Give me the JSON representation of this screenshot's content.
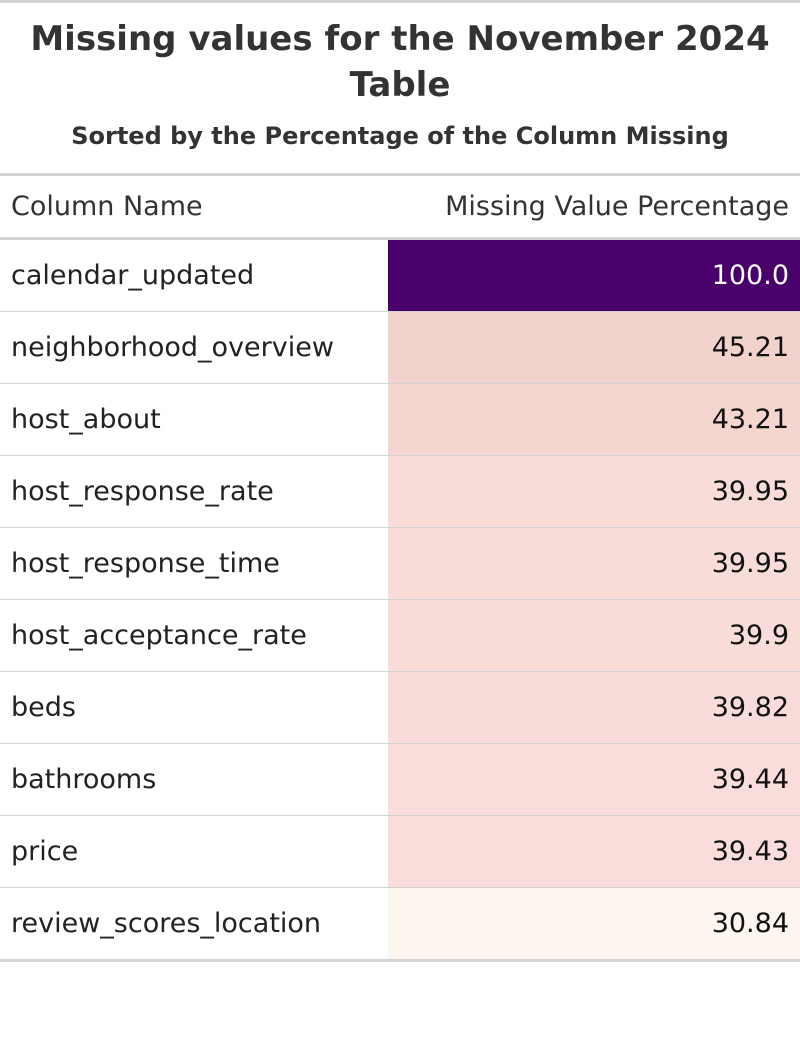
{
  "chart_data": {
    "type": "table",
    "title": "Missing values for the November 2024 Table",
    "subtitle": "Sorted by the Percentage of the Column Missing",
    "columns": [
      "Column Name",
      "Missing Value Percentage"
    ],
    "rows": [
      {
        "name": "calendar_updated",
        "value": "100.0",
        "color": "#4a006b",
        "text_color": "#ffffff"
      },
      {
        "name": "neighborhood_overview",
        "value": "45.21",
        "color": "#f2d2cc",
        "text_color": "#111111"
      },
      {
        "name": "host_about",
        "value": "43.21",
        "color": "#f4d5d0",
        "text_color": "#111111"
      },
      {
        "name": "host_response_rate",
        "value": "39.95",
        "color": "#f8dcd8",
        "text_color": "#111111"
      },
      {
        "name": "host_response_time",
        "value": "39.95",
        "color": "#f8dcd8",
        "text_color": "#111111"
      },
      {
        "name": "host_acceptance_rate",
        "value": "39.9",
        "color": "#f8dcd8",
        "text_color": "#111111"
      },
      {
        "name": "beds",
        "value": "39.82",
        "color": "#f8dcd9",
        "text_color": "#111111"
      },
      {
        "name": "bathrooms",
        "value": "39.44",
        "color": "#f8dddb",
        "text_color": "#111111"
      },
      {
        "name": "price",
        "value": "39.43",
        "color": "#f8dddb",
        "text_color": "#111111"
      },
      {
        "name": "review_scores_location",
        "value": "30.84",
        "color": "#fdf6ee",
        "text_color": "#111111"
      }
    ]
  }
}
